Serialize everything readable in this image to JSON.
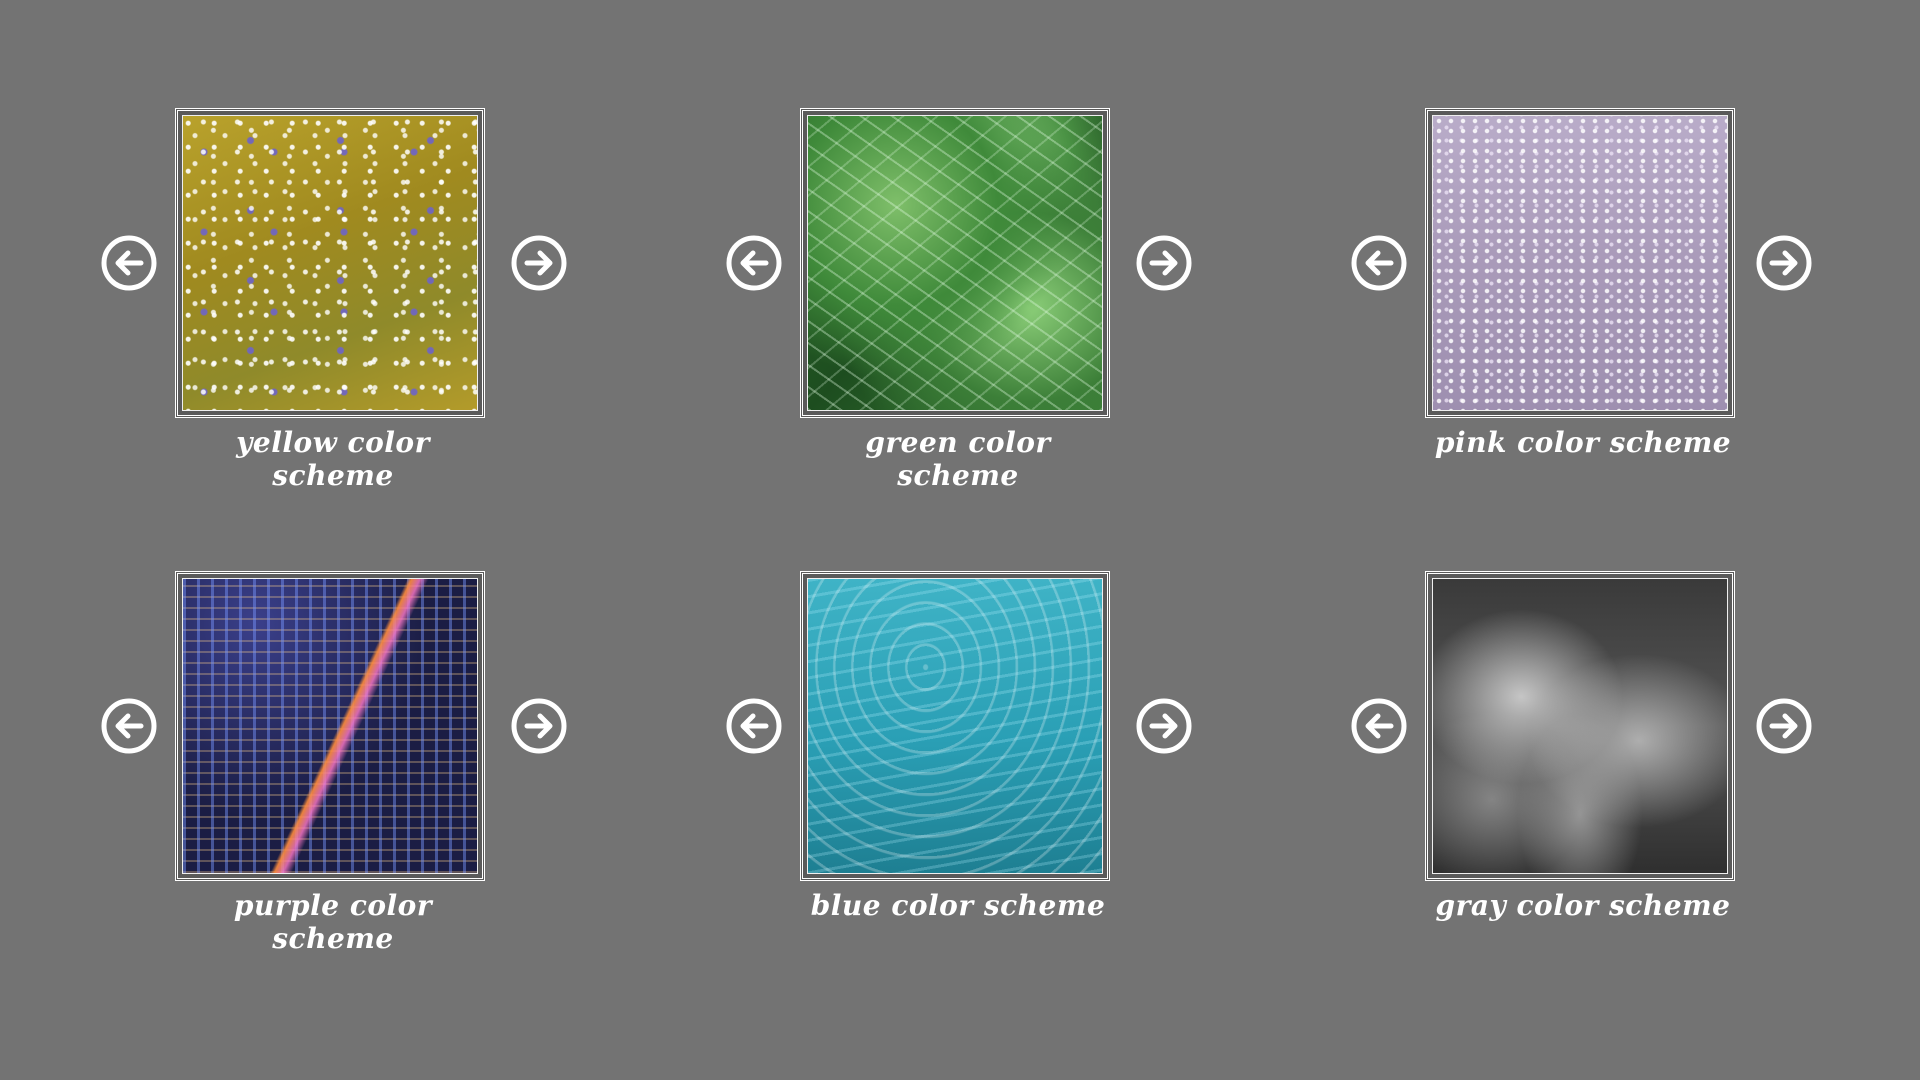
{
  "background_color": "#737373",
  "cards": [
    {
      "label": "yellow color scheme",
      "texture": "field-of-yellow-wildflowers",
      "prev_icon": "arrow-left-circle-icon",
      "next_icon": "arrow-right-circle-icon"
    },
    {
      "label": "green color scheme",
      "texture": "green-leaves",
      "prev_icon": "arrow-left-circle-icon",
      "next_icon": "arrow-right-circle-icon"
    },
    {
      "label": "pink color scheme",
      "texture": "field-of-pink-daisies",
      "prev_icon": "arrow-left-circle-icon",
      "next_icon": "arrow-right-circle-icon"
    },
    {
      "label": "purple color scheme",
      "texture": "city-at-night",
      "prev_icon": "arrow-left-circle-icon",
      "next_icon": "arrow-right-circle-icon"
    },
    {
      "label": "blue color scheme",
      "texture": "blue-water-ripples",
      "prev_icon": "arrow-left-circle-icon",
      "next_icon": "arrow-right-circle-icon"
    },
    {
      "label": "gray color scheme",
      "texture": "gray-waterfall-mist",
      "prev_icon": "arrow-left-circle-icon",
      "next_icon": "arrow-right-circle-icon"
    }
  ]
}
